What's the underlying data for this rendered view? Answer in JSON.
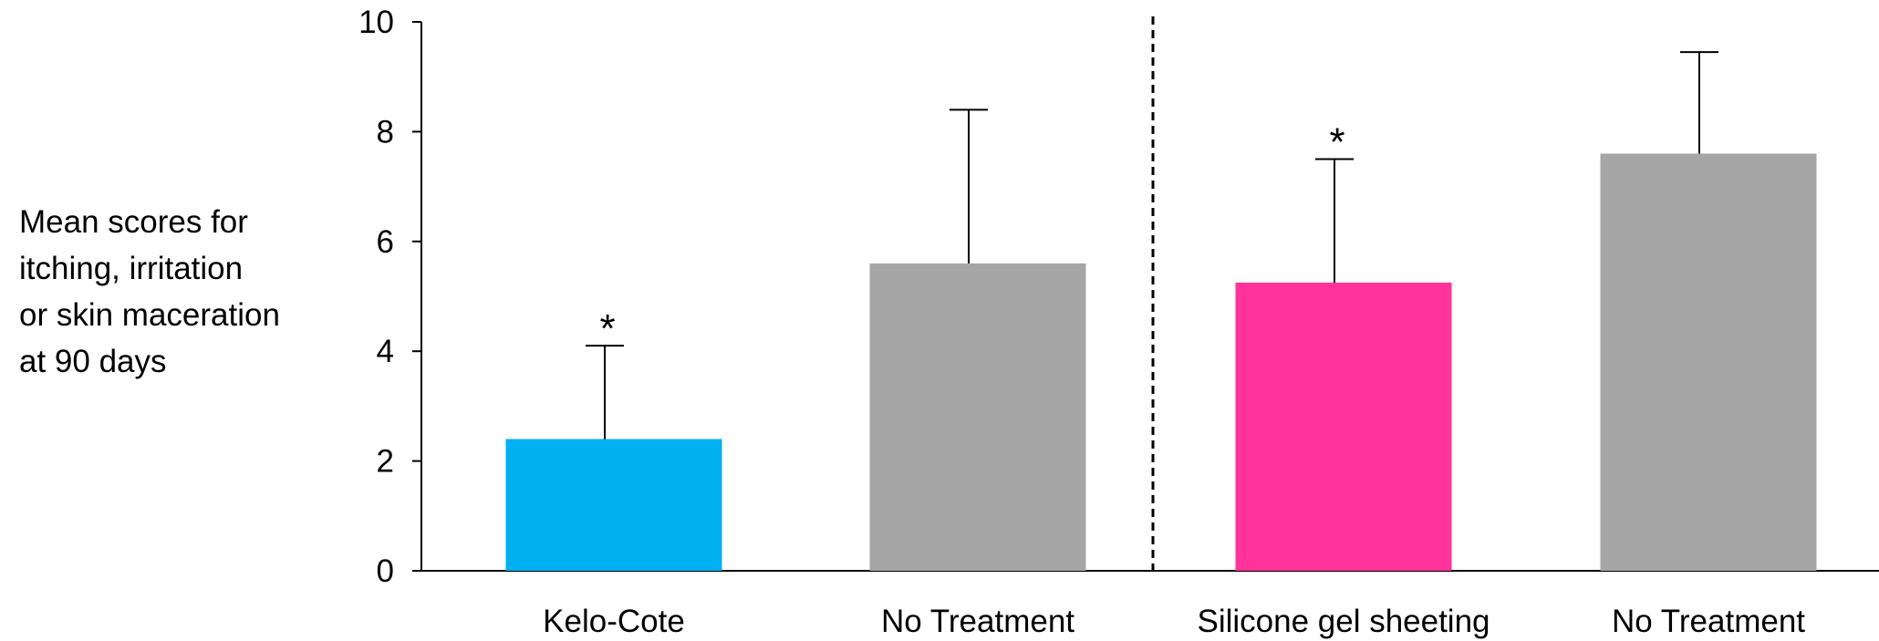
{
  "chart_data": {
    "type": "bar",
    "title": "",
    "xlabel": "",
    "ylabel_lines": [
      "Mean scores for",
      "itching, irritation",
      "or skin maceration",
      "at 90 days"
    ],
    "categories": [
      "Kelo-Cote",
      "No Treatment",
      "Silicone gel sheeting",
      "No Treatment"
    ],
    "values": [
      2.4,
      5.6,
      5.25,
      7.6
    ],
    "error_upper": [
      4.1,
      8.4,
      7.5,
      9.45
    ],
    "significance": [
      "*",
      "",
      "*",
      ""
    ],
    "colors": [
      "#00b0f0",
      "#a6a6a6",
      "#ff3399",
      "#a6a6a6"
    ],
    "ylim": [
      0,
      10
    ],
    "yticks": [
      "0",
      "2",
      "4",
      "6",
      "8",
      "10"
    ],
    "grid": false,
    "divider": "dashed line between bar 2 and bar 3"
  }
}
